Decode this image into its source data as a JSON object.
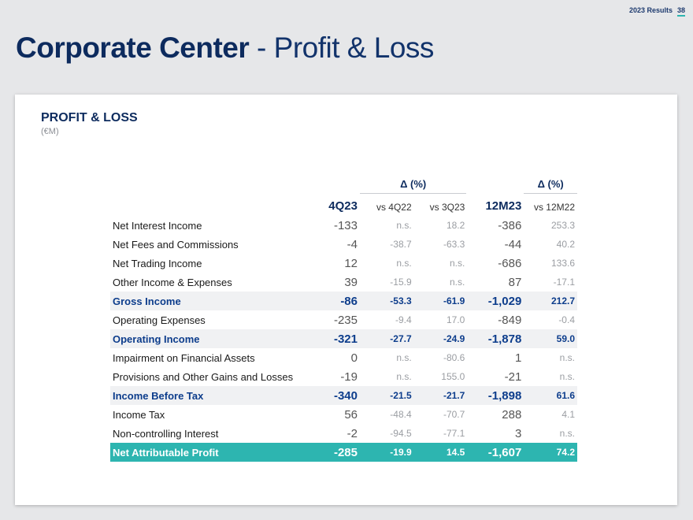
{
  "header": {
    "tag": "2023 Results",
    "page_number": "38",
    "title_bold": "Corporate Center",
    "title_rest": " - Profit & Loss"
  },
  "section": {
    "title": "PROFIT & LOSS",
    "unit": "(€M)"
  },
  "table": {
    "delta_header_1": "Δ (%)",
    "delta_header_2": "Δ (%)",
    "columns": [
      "4Q23",
      "vs 4Q22",
      "vs 3Q23",
      "12M23",
      "vs 12M22"
    ],
    "rows": [
      {
        "label": "Net Interest Income",
        "q": "-133",
        "d1": "n.s.",
        "d2": "18.2",
        "ytd": "-386",
        "d3": "253.3"
      },
      {
        "label": "Net Fees and Commissions",
        "q": "-4",
        "d1": "-38.7",
        "d2": "-63.3",
        "ytd": "-44",
        "d3": "40.2"
      },
      {
        "label": "Net Trading Income",
        "q": "12",
        "d1": "n.s.",
        "d2": "n.s.",
        "ytd": "-686",
        "d3": "133.6"
      },
      {
        "label": "Other Income & Expenses",
        "q": "39",
        "d1": "-15.9",
        "d2": "n.s.",
        "ytd": "87",
        "d3": "-17.1"
      },
      {
        "label": "Gross Income",
        "q": "-86",
        "d1": "-53.3",
        "d2": "-61.9",
        "ytd": "-1,029",
        "d3": "212.7"
      },
      {
        "label": "Operating Expenses",
        "q": "-235",
        "d1": "-9.4",
        "d2": "17.0",
        "ytd": "-849",
        "d3": "-0.4"
      },
      {
        "label": "Operating Income",
        "q": "-321",
        "d1": "-27.7",
        "d2": "-24.9",
        "ytd": "-1,878",
        "d3": "59.0"
      },
      {
        "label": "Impairment on Financial Assets",
        "q": "0",
        "d1": "n.s.",
        "d2": "-80.6",
        "ytd": "1",
        "d3": "n.s."
      },
      {
        "label": "Provisions and Other Gains and Losses",
        "q": "-19",
        "d1": "n.s.",
        "d2": "155.0",
        "ytd": "-21",
        "d3": "n.s."
      },
      {
        "label": "Income Before Tax",
        "q": "-340",
        "d1": "-21.5",
        "d2": "-21.7",
        "ytd": "-1,898",
        "d3": "61.6"
      },
      {
        "label": "Income Tax",
        "q": "56",
        "d1": "-48.4",
        "d2": "-70.7",
        "ytd": "288",
        "d3": "4.1"
      },
      {
        "label": "Non-controlling Interest",
        "q": "-2",
        "d1": "-94.5",
        "d2": "-77.1",
        "ytd": "3",
        "d3": "n.s."
      },
      {
        "label": "Net Attributable Profit",
        "q": "-285",
        "d1": "-19.9",
        "d2": "14.5",
        "ytd": "-1,607",
        "d3": "74.2"
      }
    ]
  },
  "colors": {
    "navy": "#0d2b5e",
    "teal": "#2db5b0",
    "highlight_text": "#0d3d8c"
  }
}
